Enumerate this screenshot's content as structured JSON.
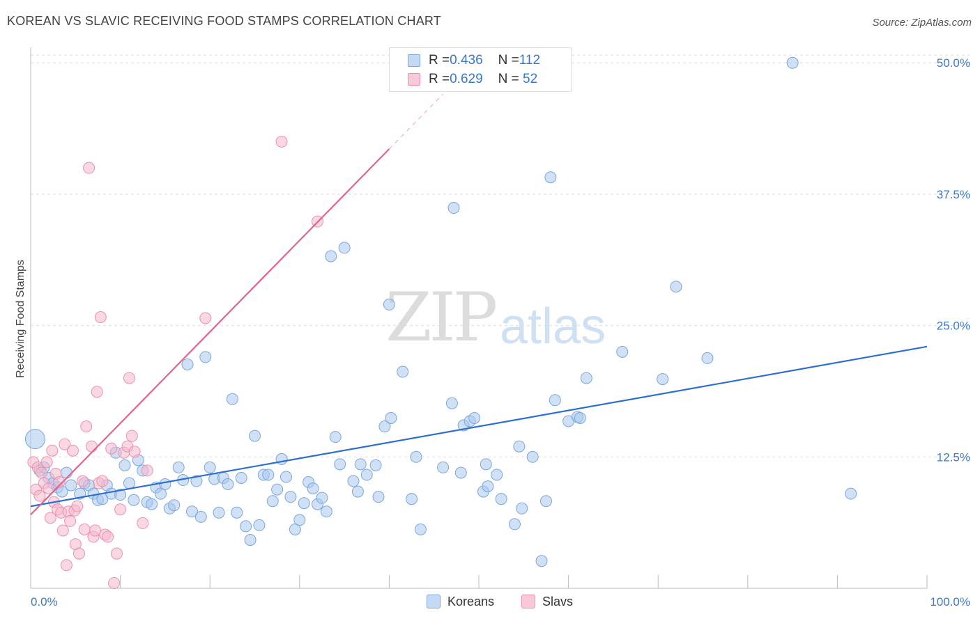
{
  "header": {
    "title": "KOREAN VS SLAVIC RECEIVING FOOD STAMPS CORRELATION CHART",
    "source": "Source: ZipAtlas.com"
  },
  "watermark": {
    "zip": "ZIP",
    "atlas": "atlas"
  },
  "legend_top": {
    "koreans": {
      "r_label": "R = ",
      "r": "0.436",
      "n_label": "N = ",
      "n": "112"
    },
    "slavs": {
      "r_label": "R = ",
      "r": "0.629",
      "n_label": "N = ",
      "n": " 52"
    }
  },
  "legend_bottom": {
    "koreans": "Koreans",
    "slavs": "Slavs"
  },
  "colors": {
    "koreans_fill": "#a9c8ee",
    "koreans_stroke": "#7aa6dd",
    "koreans_line": "#2f6fcc",
    "slavs_fill": "#f5b8cc",
    "slavs_stroke": "#ec8fae",
    "slavs_line": "#e0648e",
    "tick_text": "#3a78c9",
    "grid": "#dddddd"
  },
  "chart_data": {
    "type": "scatter",
    "title": "KOREAN VS SLAVIC RECEIVING FOOD STAMPS CORRELATION CHART",
    "xlabel": "",
    "ylabel": "Receiving Food Stamps",
    "xlim": [
      0,
      100
    ],
    "ylim": [
      0,
      52
    ],
    "x_tick_labels": [
      "0.0%",
      "100.0%"
    ],
    "y_ticks": [
      12.5,
      25.0,
      37.5,
      50.0
    ],
    "y_tick_labels": [
      "12.5%",
      "25.0%",
      "37.5%",
      "50.0%"
    ],
    "grid": true,
    "legend": "top-center",
    "series": [
      {
        "name": "Koreans",
        "r": 0.436,
        "n": 112,
        "trend": {
          "x": [
            0,
            100
          ],
          "y": [
            7.8,
            23.0
          ]
        },
        "points": [
          [
            0.5,
            14.2
          ],
          [
            1.0,
            11.2
          ],
          [
            1.5,
            11.5
          ],
          [
            2.0,
            10.5
          ],
          [
            2.5,
            10.0
          ],
          [
            3.0,
            9.6
          ],
          [
            3.5,
            9.2
          ],
          [
            4.0,
            11.0
          ],
          [
            4.5,
            9.8
          ],
          [
            5.5,
            9.0
          ],
          [
            6.0,
            10.0
          ],
          [
            6.5,
            9.8
          ],
          [
            7.0,
            9.0
          ],
          [
            7.5,
            8.4
          ],
          [
            8.0,
            8.5
          ],
          [
            8.5,
            9.8
          ],
          [
            9.0,
            9.0
          ],
          [
            9.5,
            12.9
          ],
          [
            10.0,
            8.9
          ],
          [
            10.5,
            11.7
          ],
          [
            11.0,
            10.0
          ],
          [
            11.5,
            8.4
          ],
          [
            12.0,
            12.2
          ],
          [
            12.5,
            11.2
          ],
          [
            13.0,
            8.2
          ],
          [
            13.5,
            8.0
          ],
          [
            14.0,
            9.6
          ],
          [
            14.5,
            9.0
          ],
          [
            15.0,
            9.9
          ],
          [
            15.5,
            7.6
          ],
          [
            16.0,
            7.9
          ],
          [
            16.5,
            11.5
          ],
          [
            17.0,
            10.3
          ],
          [
            17.5,
            21.3
          ],
          [
            18.0,
            7.3
          ],
          [
            18.5,
            10.2
          ],
          [
            19.0,
            6.8
          ],
          [
            19.5,
            22.0
          ],
          [
            20.0,
            11.5
          ],
          [
            20.5,
            10.4
          ],
          [
            21.0,
            7.2
          ],
          [
            21.5,
            10.5
          ],
          [
            22.0,
            9.9
          ],
          [
            22.5,
            18.0
          ],
          [
            23.0,
            7.2
          ],
          [
            23.5,
            10.5
          ],
          [
            24.0,
            5.9
          ],
          [
            24.5,
            4.6
          ],
          [
            25.0,
            14.5
          ],
          [
            25.5,
            6.0
          ],
          [
            26.0,
            10.8
          ],
          [
            26.5,
            10.8
          ],
          [
            27.0,
            8.3
          ],
          [
            27.5,
            9.4
          ],
          [
            28.0,
            12.3
          ],
          [
            28.5,
            10.6
          ],
          [
            29.0,
            8.7
          ],
          [
            29.5,
            5.6
          ],
          [
            30.0,
            6.5
          ],
          [
            30.5,
            8.1
          ],
          [
            31.0,
            10.1
          ],
          [
            31.5,
            9.5
          ],
          [
            32.0,
            8.0
          ],
          [
            32.5,
            8.6
          ],
          [
            33.0,
            7.3
          ],
          [
            33.5,
            31.6
          ],
          [
            34.0,
            14.4
          ],
          [
            34.5,
            11.8
          ],
          [
            35.0,
            32.4
          ],
          [
            36.0,
            10.2
          ],
          [
            36.5,
            9.2
          ],
          [
            36.8,
            11.8
          ],
          [
            37.5,
            10.8
          ],
          [
            38.5,
            11.7
          ],
          [
            38.8,
            8.7
          ],
          [
            39.5,
            15.4
          ],
          [
            40.0,
            27.0
          ],
          [
            40.2,
            16.2
          ],
          [
            41.5,
            20.6
          ],
          [
            42.5,
            8.5
          ],
          [
            43.0,
            12.5
          ],
          [
            43.5,
            5.6
          ],
          [
            46.0,
            11.5
          ],
          [
            47.0,
            17.6
          ],
          [
            47.2,
            36.2
          ],
          [
            48.0,
            11.0
          ],
          [
            48.3,
            15.5
          ],
          [
            49.0,
            15.9
          ],
          [
            49.5,
            16.2
          ],
          [
            50.5,
            9.2
          ],
          [
            50.8,
            11.8
          ],
          [
            51.0,
            9.7
          ],
          [
            52.0,
            10.8
          ],
          [
            52.5,
            8.5
          ],
          [
            54.0,
            6.1
          ],
          [
            54.5,
            13.5
          ],
          [
            54.8,
            7.6
          ],
          [
            56.0,
            12.5
          ],
          [
            57.0,
            2.6
          ],
          [
            57.5,
            8.3
          ],
          [
            58.0,
            39.1
          ],
          [
            58.5,
            17.9
          ],
          [
            60.0,
            15.9
          ],
          [
            61.0,
            16.3
          ],
          [
            61.3,
            16.2
          ],
          [
            62.0,
            20.0
          ],
          [
            66.0,
            22.5
          ],
          [
            70.5,
            19.9
          ],
          [
            72.0,
            28.7
          ],
          [
            75.5,
            21.9
          ],
          [
            85.0,
            50.0
          ],
          [
            91.5,
            9.0
          ]
        ]
      },
      {
        "name": "Slavs",
        "r": 0.629,
        "n": 52,
        "trend": {
          "x": [
            0,
            40
          ],
          "y": [
            7.0,
            41.8
          ]
        },
        "points": [
          [
            0.3,
            12.0
          ],
          [
            0.6,
            9.4
          ],
          [
            0.8,
            11.5
          ],
          [
            1.0,
            8.8
          ],
          [
            1.2,
            11.0
          ],
          [
            1.5,
            10.0
          ],
          [
            1.8,
            12.0
          ],
          [
            2.0,
            9.5
          ],
          [
            2.2,
            6.7
          ],
          [
            2.4,
            13.1
          ],
          [
            2.6,
            8.2
          ],
          [
            2.8,
            10.9
          ],
          [
            3.0,
            7.5
          ],
          [
            3.2,
            10.1
          ],
          [
            3.4,
            7.2
          ],
          [
            3.6,
            5.5
          ],
          [
            3.8,
            13.7
          ],
          [
            4.0,
            2.2
          ],
          [
            4.2,
            7.3
          ],
          [
            4.4,
            6.4
          ],
          [
            4.7,
            13.1
          ],
          [
            4.9,
            7.4
          ],
          [
            5.0,
            4.2
          ],
          [
            5.2,
            7.8
          ],
          [
            5.4,
            3.3
          ],
          [
            5.8,
            10.2
          ],
          [
            6.0,
            5.6
          ],
          [
            6.2,
            15.4
          ],
          [
            6.5,
            40.0
          ],
          [
            6.8,
            13.5
          ],
          [
            7.0,
            4.9
          ],
          [
            7.2,
            5.5
          ],
          [
            7.4,
            18.7
          ],
          [
            7.6,
            10.0
          ],
          [
            7.8,
            25.8
          ],
          [
            8.0,
            10.2
          ],
          [
            8.3,
            5.1
          ],
          [
            8.6,
            4.9
          ],
          [
            9.0,
            13.3
          ],
          [
            9.3,
            0.5
          ],
          [
            9.6,
            3.3
          ],
          [
            10.0,
            7.5
          ],
          [
            10.4,
            12.9
          ],
          [
            10.8,
            13.5
          ],
          [
            11.0,
            20.0
          ],
          [
            11.3,
            14.5
          ],
          [
            11.6,
            13.0
          ],
          [
            12.5,
            6.2
          ],
          [
            13.0,
            11.2
          ],
          [
            19.5,
            25.7
          ],
          [
            28.0,
            42.5
          ],
          [
            32.0,
            34.9
          ]
        ]
      }
    ]
  }
}
